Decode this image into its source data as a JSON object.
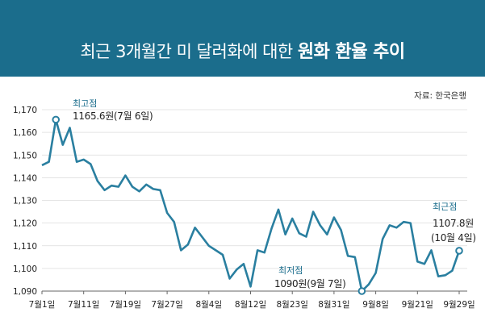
{
  "title_light": "최근 3개월간 미 달러화에 대한",
  "title_bold": "원화 환율 추이",
  "source": "자료: 한국은행",
  "colors": {
    "header": "#1b6d8c",
    "line": "#2a7fa0",
    "annotation": "#1b6d8c"
  },
  "chart_data": {
    "type": "line",
    "title": "최근 3개월간 미 달러화에 대한 원화 환율 추이",
    "ylim": [
      1090,
      1170
    ],
    "yticks": [
      "1,170",
      "1,160",
      "1,150",
      "1,140",
      "1,130",
      "1,120",
      "1,110",
      "1,100",
      "1,090"
    ],
    "ytick_values": [
      1170,
      1160,
      1150,
      1140,
      1130,
      1120,
      1110,
      1100,
      1090
    ],
    "xticks": [
      "7월1일",
      "7월11일",
      "7월19일",
      "7월27일",
      "8월4일",
      "8월12일",
      "8월23일",
      "8월31일",
      "9월8일",
      "9월21일",
      "9월29일"
    ],
    "xtick_index": [
      0,
      6,
      12,
      18,
      24,
      30,
      36,
      42,
      48,
      54,
      60
    ],
    "grid": "horizontal",
    "series": [
      {
        "values": [
          1145.5,
          1147.0,
          1165.6,
          1154.5,
          1162.0,
          1147.0,
          1148.0,
          1146.0,
          1138.5,
          1134.5,
          1136.5,
          1136.0,
          1141.0,
          1136.0,
          1134.0,
          1137.0,
          1135.0,
          1134.5,
          1124.5,
          1120.5,
          1108.0,
          1110.5,
          1118.0,
          1114.0,
          1110.0,
          1108.0,
          1106.0,
          1095.5,
          1099.5,
          1102.0,
          1092.0,
          1108.0,
          1107.0,
          1117.5,
          1126.0,
          1115.0,
          1122.0,
          1115.5,
          1114.0,
          1125.0,
          1119.0,
          1115.0,
          1122.5,
          1117.0,
          1105.5,
          1105.0,
          1090.0,
          1093.0,
          1098.0,
          1113.0,
          1119.0,
          1118.0,
          1120.5,
          1120.0,
          1103.0,
          1102.0,
          1108.0,
          1096.5,
          1097.0,
          1099.0,
          1107.8
        ]
      }
    ],
    "annotations": [
      {
        "label": "최고점",
        "value_text": "1165.6원(7월 6일)",
        "index": 2
      },
      {
        "label": "최저점",
        "value_text": "1090원(9월 7일)",
        "index": 46
      },
      {
        "label": "최근점",
        "value_text": "1107.8원",
        "value_text_2": "(10월 4일)",
        "index": 60
      }
    ]
  }
}
